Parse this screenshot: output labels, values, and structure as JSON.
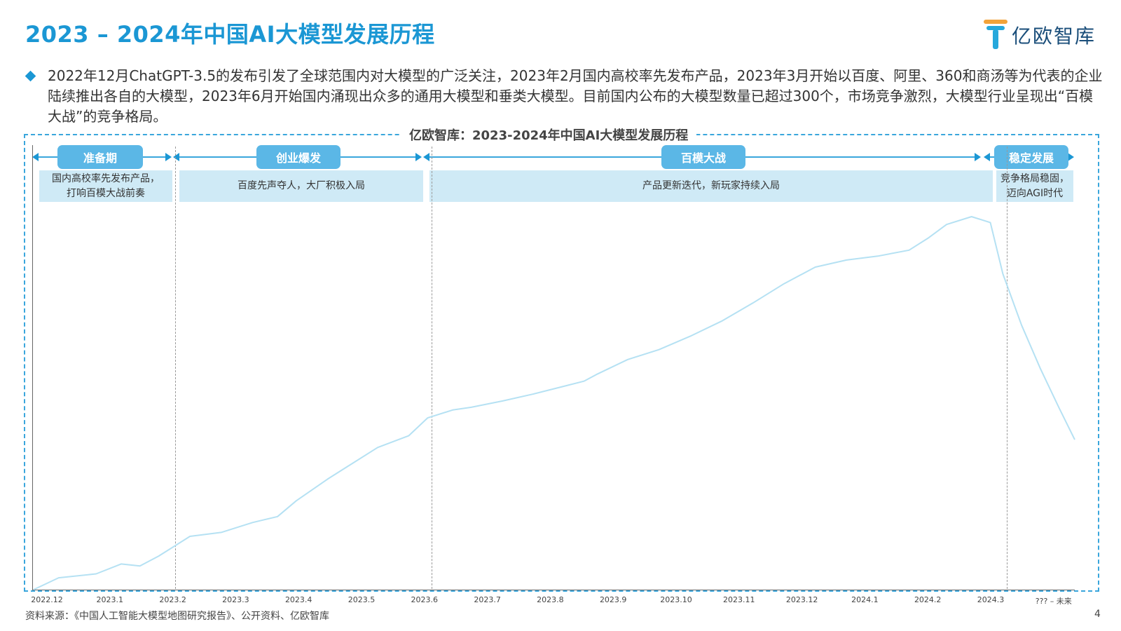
{
  "header": {
    "title": "2023 – 2024年中国AI大模型发展历程",
    "logo_text": "亿欧智库"
  },
  "summary": "2022年12月ChatGPT-3.5的发布引发了全球范围内对大模型的广泛关注，2023年2月国内高校率先发布产品，2023年3月开始以百度、阿里、360和商汤等为代表的企业陆续推出各自的大模型，2023年6月开始国内涌现出众多的通用大模型和垂类大模型。目前国内公布的大模型数量已超过300个，市场竞争激烈，大模型行业呈现出“百模大战”的竞争格局。",
  "chart_title": "亿欧智库：2023-2024年中国AI大模型发展历程",
  "phases": [
    {
      "label": "准备期",
      "desc": "国内高校率先发布产品，\n打响百模大战前奏"
    },
    {
      "label": "创业爆发",
      "desc": "百度先声夺人，大厂积极入局"
    },
    {
      "label": "百模大战",
      "desc": "产品更新迭代，新玩家持续入局"
    },
    {
      "label": "稳定发展",
      "desc": "竞争格局稳固，\n迈向AGI时代"
    }
  ],
  "chart_data": {
    "type": "line",
    "title": "亿欧智库：2023-2024年中国AI大模型发展历程",
    "xlabel": "",
    "ylabel": "",
    "categories": [
      "2022.12",
      "2023.1",
      "2023.2",
      "2023.3",
      "2023.4",
      "2023.5",
      "2023.6",
      "2023.7",
      "2023.8",
      "2023.9",
      "2023.10",
      "2023.11",
      "2023.12",
      "2024.1",
      "2024.2",
      "2024.3",
      "??? – 未来"
    ],
    "series": [
      {
        "color": "#b5e1f3",
        "points": [
          [
            0.0,
            0.0
          ],
          [
            0.4,
            0.03
          ],
          [
            1.0,
            0.04
          ],
          [
            1.4,
            0.065
          ],
          [
            1.7,
            0.06
          ],
          [
            2.0,
            0.085
          ],
          [
            2.5,
            0.135
          ],
          [
            3.0,
            0.145
          ],
          [
            3.5,
            0.17
          ],
          [
            3.9,
            0.185
          ],
          [
            4.2,
            0.225
          ],
          [
            4.7,
            0.28
          ],
          [
            5.0,
            0.31
          ],
          [
            5.5,
            0.36
          ],
          [
            6.0,
            0.39
          ],
          [
            6.3,
            0.435
          ],
          [
            6.7,
            0.455
          ],
          [
            7.0,
            0.462
          ],
          [
            7.5,
            0.478
          ],
          [
            8.0,
            0.496
          ],
          [
            8.5,
            0.516
          ],
          [
            8.8,
            0.528
          ],
          [
            9.0,
            0.545
          ],
          [
            9.5,
            0.583
          ],
          [
            10.0,
            0.608
          ],
          [
            10.5,
            0.642
          ],
          [
            11.0,
            0.68
          ],
          [
            11.5,
            0.726
          ],
          [
            12.0,
            0.775
          ],
          [
            12.5,
            0.817
          ],
          [
            13.0,
            0.835
          ],
          [
            13.5,
            0.845
          ],
          [
            14.0,
            0.86
          ],
          [
            14.3,
            0.89
          ],
          [
            14.6,
            0.925
          ],
          [
            15.0,
            0.945
          ],
          [
            15.3,
            0.93
          ],
          [
            15.5,
            0.8
          ],
          [
            15.8,
            0.67
          ],
          [
            16.1,
            0.56
          ],
          [
            16.4,
            0.46
          ],
          [
            16.65,
            0.38
          ]
        ]
      }
    ],
    "ylim": [
      0,
      1
    ],
    "xlim": [
      0,
      16.65
    ],
    "grid": false,
    "legend": "none"
  },
  "source": "资料来源：《中国人工智能大模型地图研究报告》、公开资料、亿欧智库",
  "page_number": "4"
}
